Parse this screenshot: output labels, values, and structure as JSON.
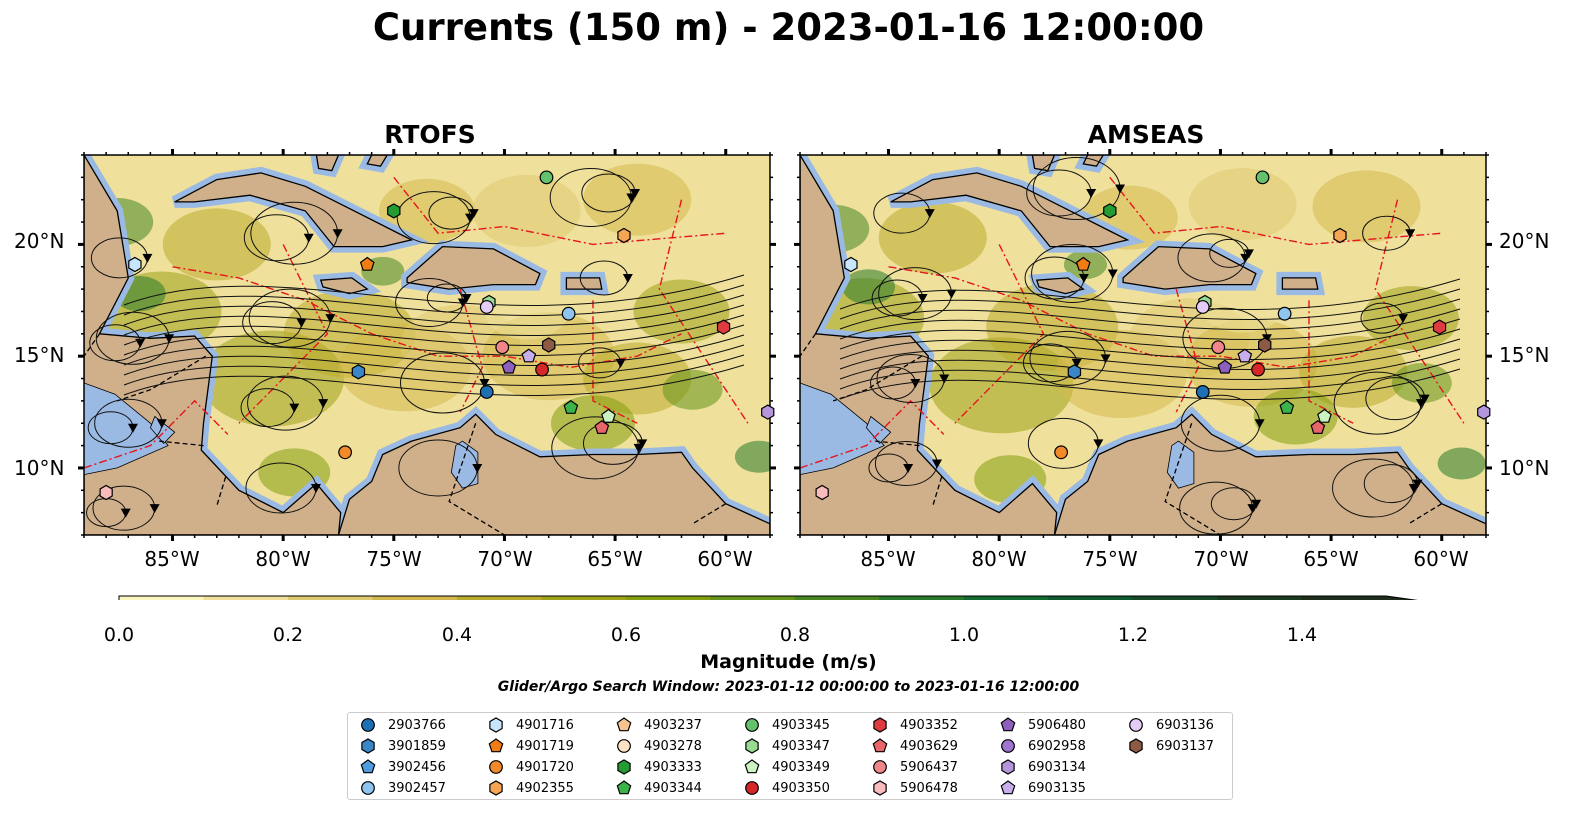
{
  "title": "Currents (150 m) - 2023-01-16 12:00:00",
  "panels": [
    {
      "title": "RTOFS"
    },
    {
      "title": "AMSEAS"
    }
  ],
  "axes": {
    "lat_labels": [
      "20°N",
      "15°N",
      "10°N"
    ],
    "lon_labels": [
      "85°W",
      "80°W",
      "75°W",
      "70°W",
      "65°W",
      "60°W"
    ]
  },
  "colorbar": {
    "label": "Magnitude (m/s)",
    "ticks": [
      "0.0",
      "0.2",
      "0.4",
      "0.6",
      "0.8",
      "1.0",
      "1.2",
      "1.4"
    ],
    "min": 0,
    "max": 1.5,
    "step": 0.1,
    "extend": "max",
    "colors": [
      "#fbf5bf",
      "#efe19c",
      "#dfc971",
      "#d3b94d",
      "#b9ab2b",
      "#9fa317",
      "#839f0f",
      "#64941a",
      "#468722",
      "#287a2a",
      "#136b30",
      "#0d5a2d",
      "#174a27",
      "#1c3a20",
      "#1d2e1a"
    ]
  },
  "search_window": "Glider/Argo Search Window: 2023-01-12 00:00:00 to 2023-01-16 12:00:00",
  "colors": {
    "land": "#d0b08a",
    "water": "#9bbae3",
    "eez": "#e8141e",
    "border": "#000000"
  },
  "legend": [
    {
      "id": "2903766",
      "marker": "circle",
      "color": "#1f6fb4"
    },
    {
      "id": "3901859",
      "marker": "hexagon",
      "color": "#3b86c6"
    },
    {
      "id": "3902456",
      "marker": "pentagon",
      "color": "#4f9be0"
    },
    {
      "id": "3902457",
      "marker": "circle",
      "color": "#8fc4ee"
    },
    {
      "id": "4901716",
      "marker": "hexagon",
      "color": "#c8e6fb"
    },
    {
      "id": "4901719",
      "marker": "pentagon",
      "color": "#ef7d14"
    },
    {
      "id": "4901720",
      "marker": "circle",
      "color": "#f28a2b"
    },
    {
      "id": "4902355",
      "marker": "hexagon",
      "color": "#f6a552"
    },
    {
      "id": "4903237",
      "marker": "pentagon",
      "color": "#f8c38e"
    },
    {
      "id": "4903278",
      "marker": "circle",
      "color": "#fde2c6"
    },
    {
      "id": "4903333",
      "marker": "hexagon",
      "color": "#249b33"
    },
    {
      "id": "4903344",
      "marker": "pentagon",
      "color": "#3bb34a"
    },
    {
      "id": "4903345",
      "marker": "circle",
      "color": "#63c26b"
    },
    {
      "id": "4903347",
      "marker": "hexagon",
      "color": "#98da8f"
    },
    {
      "id": "4903349",
      "marker": "pentagon",
      "color": "#cbf2c3"
    },
    {
      "id": "4903350",
      "marker": "circle",
      "color": "#d62728"
    },
    {
      "id": "4903352",
      "marker": "hexagon",
      "color": "#dd3b3f"
    },
    {
      "id": "4903629",
      "marker": "pentagon",
      "color": "#e8656a"
    },
    {
      "id": "5906437",
      "marker": "circle",
      "color": "#f0868a"
    },
    {
      "id": "5906478",
      "marker": "hexagon",
      "color": "#f9bcbd"
    },
    {
      "id": "5906480",
      "marker": "pentagon",
      "color": "#8d5fbf"
    },
    {
      "id": "6902958",
      "marker": "circle",
      "color": "#9f75cf"
    },
    {
      "id": "6903134",
      "marker": "hexagon",
      "color": "#b596dc"
    },
    {
      "id": "6903135",
      "marker": "pentagon",
      "color": "#c8adeb"
    },
    {
      "id": "6903136",
      "marker": "circle",
      "color": "#e3cdf7"
    },
    {
      "id": "6903137",
      "marker": "hexagon",
      "color": "#8c5a45"
    }
  ],
  "floats_rtofs": [
    {
      "id": "2903766",
      "lon": -70.8,
      "lat": 13.4
    },
    {
      "id": "3901859",
      "lon": -76.6,
      "lat": 14.3
    },
    {
      "id": "3902457",
      "lon": -67.1,
      "lat": 16.9
    },
    {
      "id": "4901716",
      "lon": -86.7,
      "lat": 19.1
    },
    {
      "id": "4901720",
      "lon": -77.2,
      "lat": 10.7
    },
    {
      "id": "4902355",
      "lon": -64.6,
      "lat": 20.4
    },
    {
      "id": "4903333",
      "lon": -75.0,
      "lat": 21.5
    },
    {
      "id": "4903345",
      "lon": -68.1,
      "lat": 23.0
    },
    {
      "id": "4903347",
      "lon": -70.7,
      "lat": 17.4
    },
    {
      "id": "4903344",
      "lon": -67.0,
      "lat": 12.7
    },
    {
      "id": "4903349",
      "lon": -65.3,
      "lat": 12.3
    },
    {
      "id": "4903350",
      "lon": -68.3,
      "lat": 14.4
    },
    {
      "id": "4903352",
      "lon": -60.1,
      "lat": 16.3
    },
    {
      "id": "4903629",
      "lon": -65.6,
      "lat": 11.8
    },
    {
      "id": "5906437",
      "lon": -70.1,
      "lat": 15.4
    },
    {
      "id": "5906480",
      "lon": -69.8,
      "lat": 14.5
    },
    {
      "id": "6903135",
      "lon": -68.9,
      "lat": 15.0
    },
    {
      "id": "6903136",
      "lon": -70.8,
      "lat": 17.2
    },
    {
      "id": "6903134",
      "lon": -58.1,
      "lat": 12.5
    },
    {
      "id": "6903137",
      "lon": -68.0,
      "lat": 15.5
    },
    {
      "id": "4901719",
      "lon": -76.2,
      "lat": 19.1
    },
    {
      "id": "5906478",
      "lon": -88.0,
      "lat": 8.9
    }
  ],
  "floats_amseas": [
    {
      "id": "2903766",
      "lon": -70.8,
      "lat": 13.4
    },
    {
      "id": "3901859",
      "lon": -76.6,
      "lat": 14.3
    },
    {
      "id": "3902457",
      "lon": -67.1,
      "lat": 16.9
    },
    {
      "id": "4901716",
      "lon": -86.7,
      "lat": 19.1
    },
    {
      "id": "4901720",
      "lon": -77.2,
      "lat": 10.7
    },
    {
      "id": "4902355",
      "lon": -64.6,
      "lat": 20.4
    },
    {
      "id": "4903333",
      "lon": -75.0,
      "lat": 21.5
    },
    {
      "id": "4903345",
      "lon": -68.1,
      "lat": 23.0
    },
    {
      "id": "4903347",
      "lon": -70.7,
      "lat": 17.4
    },
    {
      "id": "4903344",
      "lon": -67.0,
      "lat": 12.7
    },
    {
      "id": "4903349",
      "lon": -65.3,
      "lat": 12.3
    },
    {
      "id": "4903350",
      "lon": -68.3,
      "lat": 14.4
    },
    {
      "id": "4903352",
      "lon": -60.1,
      "lat": 16.3
    },
    {
      "id": "4903629",
      "lon": -65.6,
      "lat": 11.8
    },
    {
      "id": "5906437",
      "lon": -70.1,
      "lat": 15.4
    },
    {
      "id": "5906480",
      "lon": -69.8,
      "lat": 14.5
    },
    {
      "id": "6903135",
      "lon": -68.9,
      "lat": 15.0
    },
    {
      "id": "6903136",
      "lon": -70.8,
      "lat": 17.2
    },
    {
      "id": "6903134",
      "lon": -58.1,
      "lat": 12.5
    },
    {
      "id": "6903137",
      "lon": -68.0,
      "lat": 15.5
    },
    {
      "id": "4901719",
      "lon": -76.2,
      "lat": 19.1
    },
    {
      "id": "5906478",
      "lon": -88.0,
      "lat": 8.9
    }
  ],
  "extent": {
    "lon_min": -89,
    "lon_max": -58,
    "lat_min": 7,
    "lat_max": 24
  }
}
